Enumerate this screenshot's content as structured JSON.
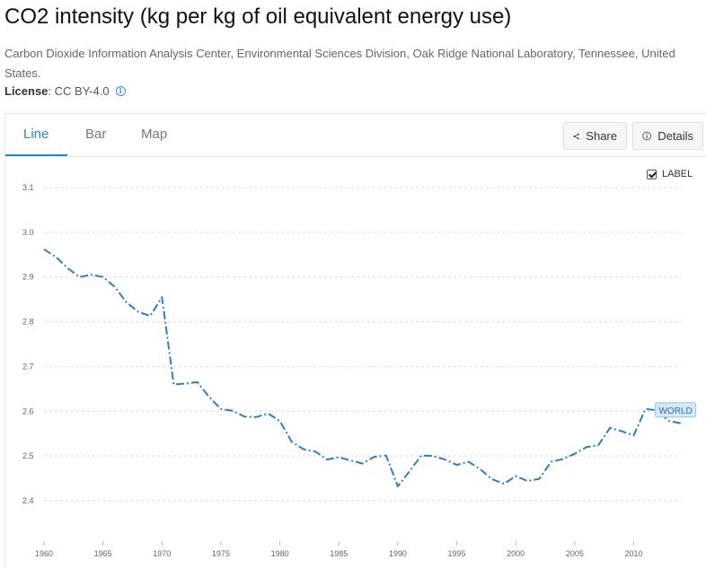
{
  "header": {
    "title": "CO2 intensity (kg per kg of oil equivalent energy use)",
    "source": "Carbon Dioxide Information Analysis Center, Environmental Sciences Division, Oak Ridge National Laboratory, Tennessee, United States.",
    "license_label": "License",
    "license_value": " : CC BY-4.0",
    "info_icon": "info-circle-icon"
  },
  "tabs": [
    {
      "label": "Line",
      "active": true
    },
    {
      "label": "Bar",
      "active": false
    },
    {
      "label": "Map",
      "active": false
    }
  ],
  "actions": {
    "share_label": "Share",
    "share_icon": "share-icon",
    "details_label": "Details",
    "details_icon": "info-circle-icon"
  },
  "label_toggle": {
    "label": "LABEL",
    "checked": true
  },
  "colors": {
    "accent": "#2b83c6",
    "series": "#2e7fb8",
    "grid": "#dcdcdc"
  },
  "chart_data": {
    "type": "line",
    "title": "",
    "xlabel": "",
    "ylabel": "",
    "ylim": [
      2.4,
      3.1
    ],
    "xlim": [
      1960,
      2014
    ],
    "x_ticks": [
      "1960",
      "1965",
      "1970",
      "1975",
      "1980",
      "1985",
      "1990",
      "1995",
      "2000",
      "2005",
      "2010"
    ],
    "y_ticks": [
      "2.4",
      "2.5",
      "2.6",
      "2.7",
      "2.8",
      "2.9",
      "3.0",
      "3.1"
    ],
    "grid": true,
    "line_style": "dash-dot",
    "series": [
      {
        "name": "WORLD",
        "x": [
          1960,
          1961,
          1962,
          1963,
          1964,
          1965,
          1966,
          1967,
          1968,
          1969,
          1970,
          1971,
          1972,
          1973,
          1974,
          1975,
          1976,
          1977,
          1978,
          1979,
          1980,
          1981,
          1982,
          1983,
          1984,
          1985,
          1986,
          1987,
          1988,
          1989,
          1990,
          1991,
          1992,
          1993,
          1994,
          1995,
          1996,
          1997,
          1998,
          1999,
          2000,
          2001,
          2002,
          2003,
          2004,
          2005,
          2006,
          2007,
          2008,
          2009,
          2010,
          2011,
          2012,
          2013,
          2014
        ],
        "values": [
          2.962,
          2.945,
          2.92,
          2.9,
          2.905,
          2.9,
          2.878,
          2.843,
          2.822,
          2.813,
          2.855,
          2.66,
          2.662,
          2.665,
          2.632,
          2.605,
          2.601,
          2.588,
          2.587,
          2.595,
          2.578,
          2.532,
          2.515,
          2.51,
          2.492,
          2.497,
          2.49,
          2.483,
          2.498,
          2.501,
          2.432,
          2.466,
          2.501,
          2.5,
          2.492,
          2.48,
          2.487,
          2.47,
          2.448,
          2.438,
          2.455,
          2.444,
          2.449,
          2.487,
          2.493,
          2.505,
          2.52,
          2.524,
          2.563,
          2.555,
          2.546,
          2.605,
          2.602,
          2.578,
          2.573
        ]
      }
    ]
  }
}
